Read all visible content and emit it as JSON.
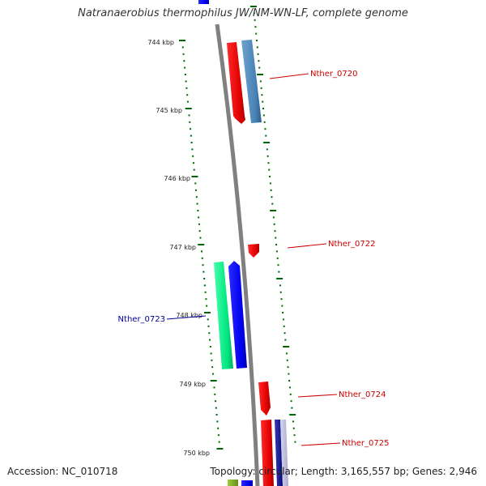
{
  "title": "Natranaerobius thermophilus JW/NM-WN-LF, complete genome",
  "footer": {
    "accession": "Accession: NC_010718",
    "topology": "Topology: circular; Length: 3,165,557 bp; Genes: 2,946"
  },
  "ruler": {
    "unit": "kbp",
    "ticks": [
      "744 kbp",
      "745 kbp",
      "746 kbp",
      "747 kbp",
      "748 kbp",
      "749 kbp",
      "750 kbp"
    ]
  },
  "genes": [
    {
      "id": "Nther_0720",
      "color": "#cc0000"
    },
    {
      "id": "Nther_0722",
      "color": "#cc0000"
    },
    {
      "id": "Nther_0723",
      "color": "#000099"
    },
    {
      "id": "Nther_0724",
      "color": "#cc0000"
    },
    {
      "id": "Nther_0725",
      "color": "#cc0000"
    }
  ],
  "colors": {
    "backbone": "#808080",
    "ticks": "#006600",
    "red_feature": "#ff0000",
    "blue_feature": "#0000ff",
    "steel_feature": "#4682b4",
    "green_feature": "#00ee88",
    "navy_feature": "#000080"
  }
}
